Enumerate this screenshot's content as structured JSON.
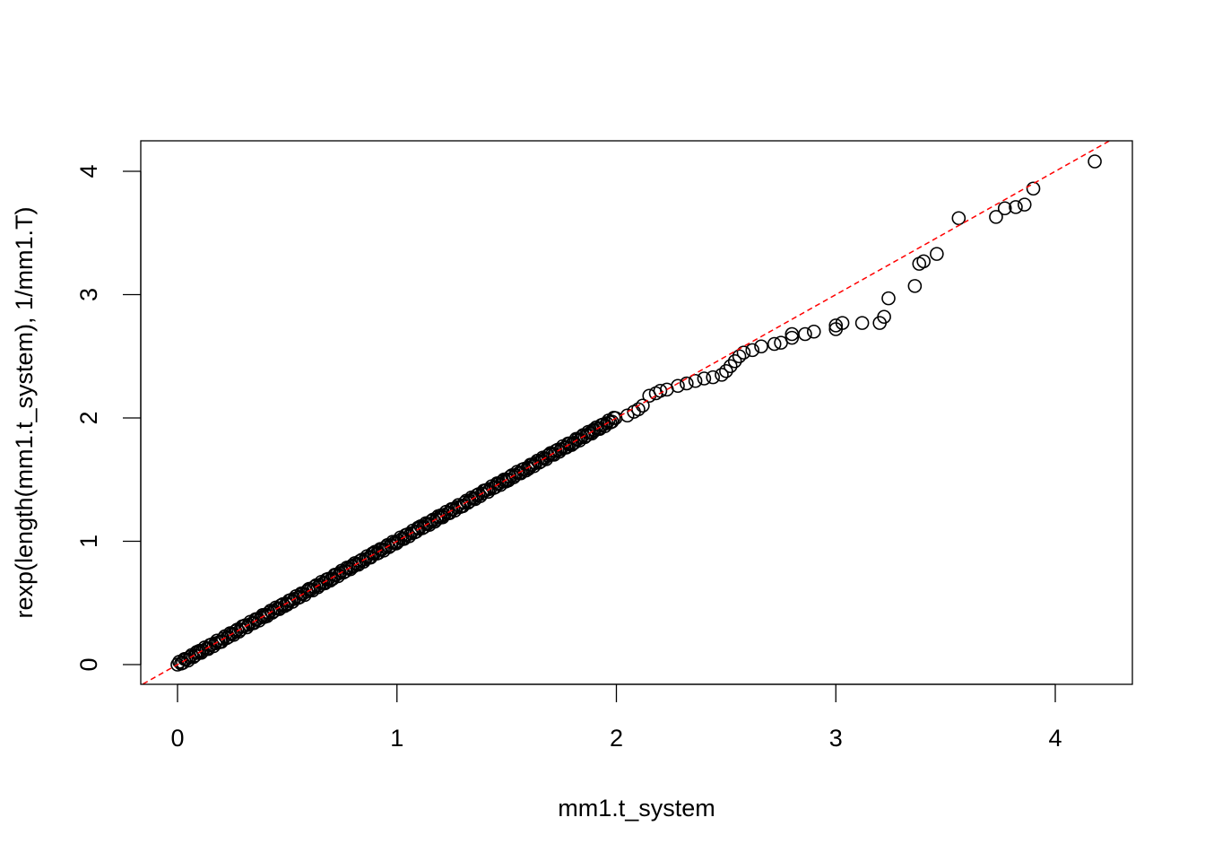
{
  "chart_data": {
    "type": "scatter",
    "title": "",
    "xlabel": "mm1.t_system",
    "ylabel": "rexp(length(mm1.t_system), 1/mm1.T)",
    "xlim": [
      -0.18,
      4.34
    ],
    "ylim": [
      -0.16,
      4.25
    ],
    "xticks": [
      0,
      1,
      2,
      3,
      4
    ],
    "yticks": [
      0,
      1,
      2,
      3,
      4
    ],
    "grid": false,
    "legend": null,
    "marker": "open-circle",
    "point_color": "#000000",
    "reference_line": {
      "slope": 1,
      "intercept": 0,
      "color": "#ff0000",
      "style": "dashed",
      "label": "y = x"
    },
    "dense_segments": [
      {
        "x0": 0.0,
        "x1": 2.05,
        "note": "tightly overlapping points along y ≈ x",
        "points": [
          [
            0,
            0
          ],
          [
            0.1,
            0.1
          ],
          [
            0.2,
            0.2
          ],
          [
            0.3,
            0.3
          ],
          [
            0.4,
            0.4
          ],
          [
            0.5,
            0.5
          ],
          [
            0.6,
            0.6
          ],
          [
            0.7,
            0.7
          ],
          [
            0.8,
            0.8
          ],
          [
            0.9,
            0.9
          ],
          [
            1.0,
            1.0
          ],
          [
            1.1,
            1.1
          ],
          [
            1.2,
            1.2
          ],
          [
            1.3,
            1.3
          ],
          [
            1.4,
            1.4
          ],
          [
            1.5,
            1.5
          ],
          [
            1.6,
            1.6
          ],
          [
            1.7,
            1.7
          ],
          [
            1.8,
            1.8
          ],
          [
            1.9,
            1.9
          ],
          [
            2.0,
            2.0
          ]
        ]
      }
    ],
    "points": [
      [
        2.05,
        2.02
      ],
      [
        2.08,
        2.05
      ],
      [
        2.1,
        2.07
      ],
      [
        2.12,
        2.1
      ],
      [
        2.15,
        2.18
      ],
      [
        2.18,
        2.2
      ],
      [
        2.2,
        2.22
      ],
      [
        2.23,
        2.23
      ],
      [
        2.28,
        2.26
      ],
      [
        2.32,
        2.28
      ],
      [
        2.36,
        2.3
      ],
      [
        2.4,
        2.32
      ],
      [
        2.44,
        2.33
      ],
      [
        2.48,
        2.35
      ],
      [
        2.5,
        2.38
      ],
      [
        2.52,
        2.42
      ],
      [
        2.54,
        2.46
      ],
      [
        2.56,
        2.5
      ],
      [
        2.58,
        2.53
      ],
      [
        2.62,
        2.55
      ],
      [
        2.66,
        2.58
      ],
      [
        2.72,
        2.6
      ],
      [
        2.75,
        2.61
      ],
      [
        2.8,
        2.65
      ],
      [
        2.8,
        2.68
      ],
      [
        2.86,
        2.68
      ],
      [
        2.9,
        2.7
      ],
      [
        3.0,
        2.72
      ],
      [
        3.0,
        2.75
      ],
      [
        3.03,
        2.77
      ],
      [
        3.12,
        2.77
      ],
      [
        3.2,
        2.77
      ],
      [
        3.22,
        2.82
      ],
      [
        3.24,
        2.97
      ],
      [
        3.36,
        3.07
      ],
      [
        3.38,
        3.25
      ],
      [
        3.4,
        3.27
      ],
      [
        3.46,
        3.33
      ],
      [
        3.56,
        3.62
      ],
      [
        3.73,
        3.63
      ],
      [
        3.77,
        3.7
      ],
      [
        3.82,
        3.71
      ],
      [
        3.86,
        3.73
      ],
      [
        3.9,
        3.86
      ],
      [
        4.18,
        4.08
      ]
    ]
  }
}
